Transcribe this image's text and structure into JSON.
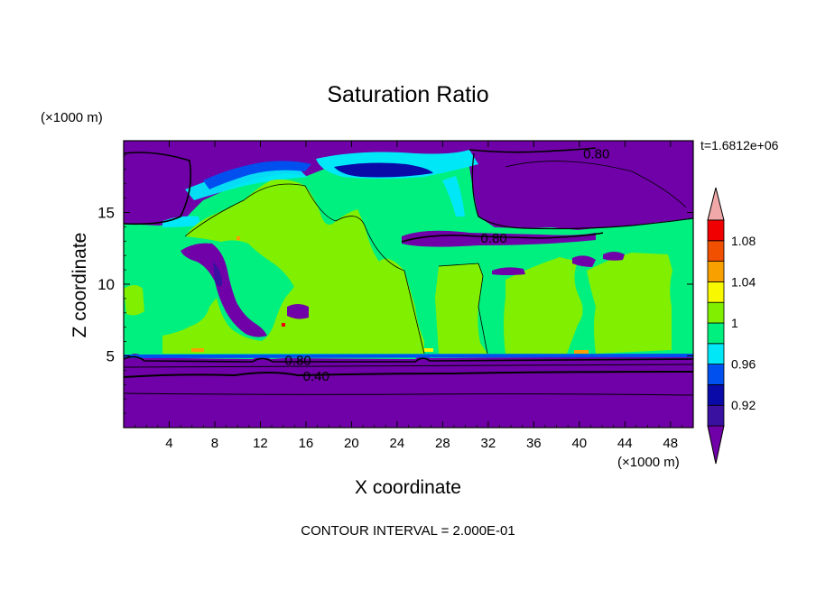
{
  "chart_data": {
    "type": "heatmap",
    "subtype": "filled-contour",
    "title": "Saturation Ratio",
    "xlabel": "X coordinate",
    "ylabel": "Z coordinate",
    "x_unit": "(×1000 m)",
    "z_unit": "(×1000 m)",
    "time_label": "t=1.6812e+06",
    "footer": "CONTOUR INTERVAL = 2.000E-01",
    "xlim": [
      0,
      50
    ],
    "ylim": [
      0,
      20
    ],
    "x_ticks": [
      4,
      8,
      12,
      16,
      20,
      24,
      28,
      32,
      36,
      40,
      44,
      48
    ],
    "x_tick_labels": [
      "4",
      "8",
      "12",
      "16",
      "20",
      "24",
      "28",
      "32",
      "36",
      "40",
      "44",
      "48"
    ],
    "y_ticks": [
      5,
      10,
      15
    ],
    "y_tick_labels": [
      "5",
      "10",
      "15"
    ],
    "contour_labels": [
      {
        "text": "0.80",
        "x": 41.5,
        "z": 19.1
      },
      {
        "text": "0.80",
        "x": 32.5,
        "z": 13.2
      },
      {
        "text": "0.80",
        "x": 15.3,
        "z": 4.7
      },
      {
        "text": "0.40",
        "x": 16.9,
        "z": 3.6
      }
    ],
    "colorbar": {
      "boundaries": [
        0.9,
        0.92,
        0.94,
        0.96,
        0.98,
        1.0,
        1.02,
        1.04,
        1.06,
        1.08,
        1.1
      ],
      "tick_values": [
        0.92,
        0.96,
        1.0,
        1.04,
        1.08
      ],
      "tick_labels": [
        "0.92",
        "0.96",
        "1",
        "1.04",
        "1.08"
      ],
      "colors": [
        "#3a10a0",
        "#0a0aa8",
        "#0050f0",
        "#00e8f8",
        "#00f080",
        "#80f000",
        "#f8f800",
        "#f8a000",
        "#f05000",
        "#f00000"
      ],
      "under_color": "#7000a8",
      "over_color": "#f0a8a8"
    },
    "regions": [
      {
        "name": "surface-dry-layer",
        "value": 0.5,
        "z_range": [
          0,
          4.8
        ]
      },
      {
        "name": "boundary-layer",
        "value": 0.99,
        "z_range": [
          4.8,
          13.5
        ]
      },
      {
        "name": "upper-dry-layer",
        "value": 0.6,
        "z_range": [
          16,
          20
        ]
      },
      {
        "name": "central-supersaturated-plume",
        "value": 1.01,
        "x_range": [
          3,
          27
        ],
        "z_range": [
          5,
          17.5
        ]
      }
    ]
  }
}
